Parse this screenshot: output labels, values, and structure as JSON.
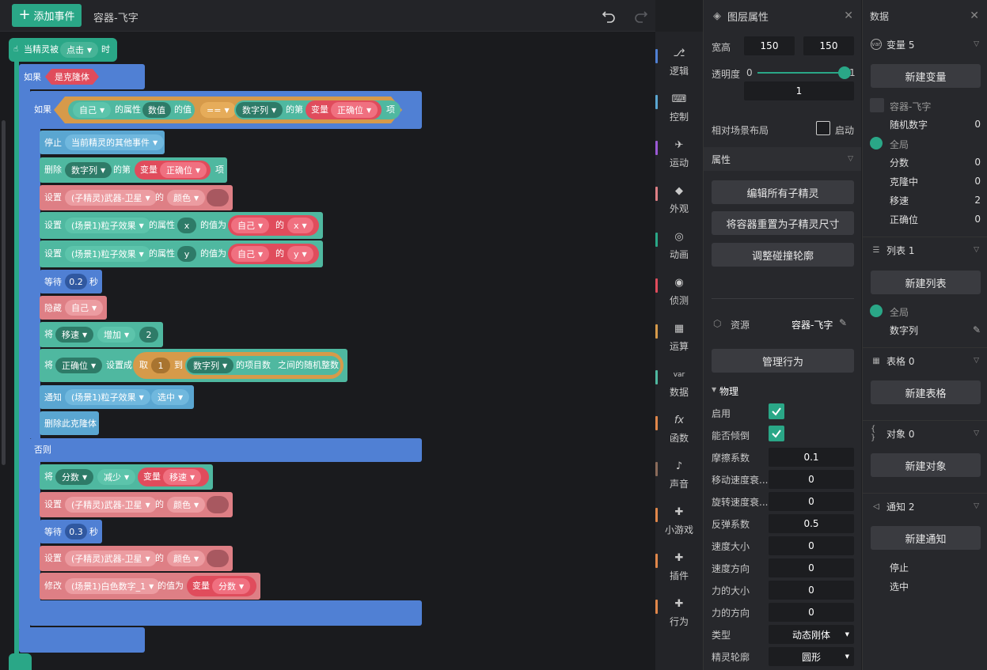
{
  "topbar": {
    "add_event": "添加事件",
    "title": "容器-飞字"
  },
  "blocks": {
    "event": {
      "prefix": "当精灵被",
      "trigger": "点击",
      "suffix": "时"
    },
    "if1": {
      "label": "如果",
      "cond": "是克隆体"
    },
    "if2": {
      "label": "如果",
      "self": "自己",
      "prop_of": "的属性",
      "prop": "数值",
      "value_of": "的值",
      "op": "==",
      "list": "数字列",
      "nth": "的第",
      "var": "变量",
      "var_name": "正确位",
      "item": "项"
    },
    "stop": {
      "label": "停止",
      "target": "当前精灵的其他事件"
    },
    "delete": {
      "label": "删除",
      "list": "数字列",
      "nth": "的第",
      "var": "变量",
      "var_name": "正确位",
      "item": "项"
    },
    "set_color1": {
      "label": "设置",
      "target": "(子精灵)武器-卫星",
      "of": "的",
      "prop": "颜色"
    },
    "set_x": {
      "label": "设置",
      "target": "(场景1)粒子效果",
      "prop_of": "的属性",
      "prop": "x",
      "value_of": "的值为",
      "self": "自己",
      "of": "的",
      "sub": "x"
    },
    "set_y": {
      "label": "设置",
      "target": "(场景1)粒子效果",
      "prop_of": "的属性",
      "prop": "y",
      "value_of": "的值为",
      "self": "自己",
      "of": "的",
      "sub": "y"
    },
    "wait1": {
      "label": "等待",
      "value": "0.2",
      "unit": "秒"
    },
    "hide": {
      "label": "隐藏",
      "target": "自己"
    },
    "change_speed": {
      "label": "将",
      "var": "移速",
      "op": "增加",
      "value": "2"
    },
    "set_pos": {
      "label": "将",
      "var": "正确位",
      "set": "设置成",
      "take": "取",
      "from": "1",
      "to": "到",
      "list": "数字列",
      "count": "的项目数",
      "rand": "之间的随机整数"
    },
    "notify": {
      "label": "通知",
      "target": "(场景1)粒子效果",
      "msg": "选中"
    },
    "delete_clone": {
      "label": "删除此克隆体"
    },
    "else": {
      "label": "否则"
    },
    "dec_score": {
      "label": "将",
      "var": "分数",
      "op": "减少",
      "v": "变量",
      "v_name": "移速"
    },
    "set_color2": {
      "label": "设置",
      "target": "(子精灵)武器-卫星",
      "of": "的",
      "prop": "颜色"
    },
    "wait2": {
      "label": "等待",
      "value": "0.3",
      "unit": "秒"
    },
    "set_color3": {
      "label": "设置",
      "target": "(子精灵)武器-卫星",
      "of": "的",
      "prop": "颜色"
    },
    "modify": {
      "label": "修改",
      "target": "(场景1)白色数字_1",
      "value_of": "的值为",
      "v": "变量",
      "v_name": "分数"
    }
  },
  "categories": [
    {
      "label": "逻辑",
      "color": "#5080d4",
      "icon": "logic-icon"
    },
    {
      "label": "控制",
      "color": "#5aa6d1",
      "icon": "control-icon"
    },
    {
      "label": "运动",
      "color": "#9b59d6",
      "icon": "motion-icon"
    },
    {
      "label": "外观",
      "color": "#de7f85",
      "icon": "looks-icon"
    },
    {
      "label": "动画",
      "color": "#2aa787",
      "icon": "animation-icon"
    },
    {
      "label": "侦测",
      "color": "#e04c5c",
      "icon": "sensing-icon"
    },
    {
      "label": "运算",
      "color": "#d69a4a",
      "icon": "operators-icon"
    },
    {
      "label": "数据",
      "color": "#4fb8a0",
      "icon": "data-icon"
    },
    {
      "label": "函数",
      "color": "#e0874a",
      "icon": "function-icon"
    },
    {
      "label": "声音",
      "color": "#8a6b5a",
      "icon": "sound-icon"
    },
    {
      "label": "小游戏",
      "color": "#e0874a",
      "icon": "minigame-icon"
    },
    {
      "label": "插件",
      "color": "#e0874a",
      "icon": "plugin-icon"
    },
    {
      "label": "行为",
      "color": "#e0874a",
      "icon": "behavior-icon"
    }
  ],
  "props": {
    "title": "图层属性",
    "size_label": "宽高",
    "width": "150",
    "height": "150",
    "opacity_label": "透明度",
    "opacity_min": "0",
    "opacity_max": "1",
    "opacity_value": "1",
    "opacity_fraction": 1,
    "relative_label": "相对场景布局",
    "relative_enable": "启动",
    "attributes": "属性",
    "edit_children": "编辑所有子精灵",
    "reset_size": "将容器重置为子精灵尺寸",
    "adjust_collision": "调整碰撞轮廓",
    "resource_label": "资源",
    "resource_name": "容器-飞字",
    "manage_behavior": "管理行为",
    "physics": "物理",
    "enable": "启用",
    "can_tilt": "能否倾倒",
    "friction": {
      "label": "摩擦系数",
      "value": "0.1"
    },
    "move_decay": {
      "label": "移动速度衰...",
      "value": "0"
    },
    "rotate_decay": {
      "label": "旋转速度衰...",
      "value": "0"
    },
    "bounce": {
      "label": "反弹系数",
      "value": "0.5"
    },
    "speed": {
      "label": "速度大小",
      "value": "0"
    },
    "speed_dir": {
      "label": "速度方向",
      "value": "0"
    },
    "force": {
      "label": "力的大小",
      "value": "0"
    },
    "force_dir": {
      "label": "力的方向",
      "value": "0"
    },
    "type": {
      "label": "类型",
      "value": "动态刚体"
    },
    "outline": {
      "label": "精灵轮廓",
      "value": "圆形"
    }
  },
  "data": {
    "title": "数据",
    "vars": {
      "label": "变量 5",
      "new": "新建变量",
      "owner": "容器-飞字",
      "local": [
        {
          "name": "随机数字",
          "value": "0"
        }
      ],
      "global_label": "全局",
      "global": [
        {
          "name": "分数",
          "value": "0"
        },
        {
          "name": "克隆中",
          "value": "0"
        },
        {
          "name": "移速",
          "value": "2"
        },
        {
          "name": "正确位",
          "value": "0"
        }
      ]
    },
    "lists": {
      "label": "列表 1",
      "new": "新建列表",
      "global_label": "全局",
      "items": [
        "数字列"
      ]
    },
    "tables": {
      "label": "表格 0",
      "new": "新建表格"
    },
    "objects": {
      "label": "对象 0",
      "new": "新建对象"
    },
    "notices": {
      "label": "通知 2",
      "new": "新建通知",
      "items": [
        "停止",
        "选中"
      ]
    }
  }
}
